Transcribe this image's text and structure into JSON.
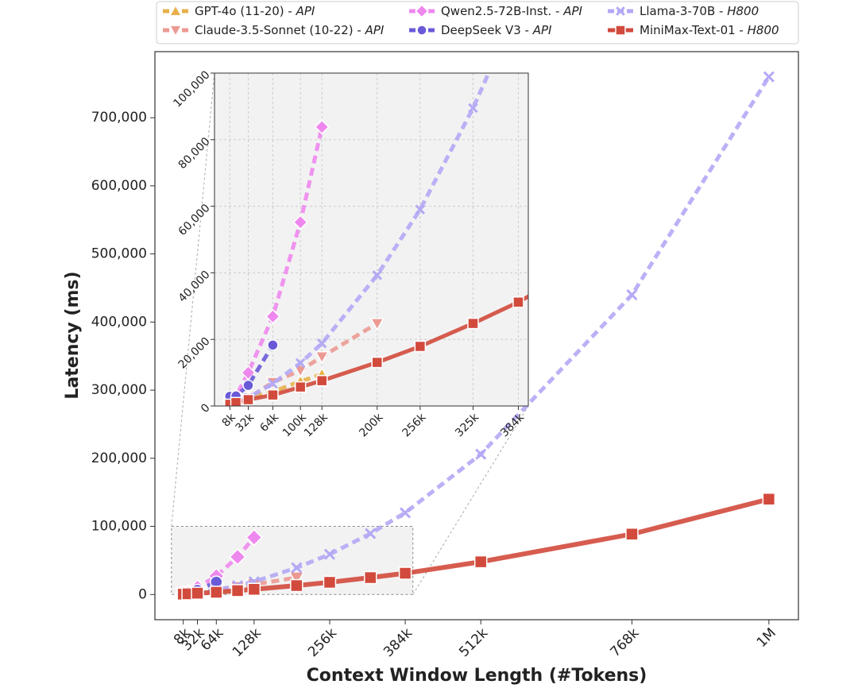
{
  "chart_data": {
    "type": "line",
    "x_label": "Context Window Length (#Tokens)",
    "y_label": "Latency (ms)",
    "xlim": [
      -40,
      1050
    ],
    "ylim": [
      -37000,
      797000
    ],
    "xticks": [
      {
        "value": 8,
        "label": "8k"
      },
      {
        "value": 32,
        "label": "32k"
      },
      {
        "value": 64,
        "label": "64k"
      },
      {
        "value": 128,
        "label": "128k"
      },
      {
        "value": 256,
        "label": "256k"
      },
      {
        "value": 384,
        "label": "384k"
      },
      {
        "value": 512,
        "label": "512k"
      },
      {
        "value": 768,
        "label": "768k"
      },
      {
        "value": 1000,
        "label": "1M"
      }
    ],
    "yticks": [
      0,
      {
        "value": 100000,
        "label": "100,000"
      },
      {
        "value": 200000,
        "label": "200,000"
      },
      {
        "value": 300000,
        "label": "300,000"
      },
      {
        "value": 400000,
        "label": "400,000"
      },
      {
        "value": 500000,
        "label": "500,000"
      },
      {
        "value": 600000,
        "label": "600,000"
      },
      {
        "value": 700000,
        "label": "700,000"
      }
    ],
    "grid": false,
    "inset": {
      "xlim": [
        -12,
        397
      ],
      "ylim": [
        0,
        100000
      ],
      "xticks": [
        {
          "value": 8,
          "label": "8k"
        },
        {
          "value": 32,
          "label": "32k"
        },
        {
          "value": 64,
          "label": "64k"
        },
        {
          "value": 100,
          "label": "100k"
        },
        {
          "value": 128,
          "label": "128k"
        },
        {
          "value": 200,
          "label": "200k"
        },
        {
          "value": 256,
          "label": "256k"
        },
        {
          "value": 325,
          "label": "325k"
        },
        {
          "value": 384,
          "label": "384k"
        }
      ],
      "yticks": [
        0,
        {
          "value": 20000,
          "label": "20,000"
        },
        {
          "value": 40000,
          "label": "40,000"
        },
        {
          "value": 60000,
          "label": "60,000"
        },
        {
          "value": 80000,
          "label": "80,000"
        },
        {
          "value": 100000,
          "label": "100,000"
        }
      ],
      "grid": true
    },
    "legend_position": "top",
    "series": [
      {
        "name": "GPT-4o (11-20) -",
        "platform": "API",
        "color": "#e8b04a",
        "marker": "triangle-up",
        "linestyle": "dashed",
        "x": [
          8,
          16,
          32,
          64,
          100,
          128
        ],
        "values": [
          1000,
          1200,
          2400,
          4300,
          7400,
          9500
        ]
      },
      {
        "name": "Claude-3.5-Sonnet (10-22) -",
        "platform": "API",
        "color": "#eb9a93",
        "marker": "triangle-down",
        "linestyle": "dashed",
        "x": [
          8,
          16,
          32,
          64,
          100,
          128,
          200
        ],
        "values": [
          500,
          1200,
          2400,
          7100,
          10700,
          14800,
          24800
        ]
      },
      {
        "name": "Qwen2.5-72B-Inst. -",
        "platform": "API",
        "color": "#ee88ee",
        "marker": "diamond",
        "linestyle": "dashed",
        "x": [
          8,
          16,
          32,
          64,
          100,
          128
        ],
        "values": [
          1500,
          3000,
          10000,
          26900,
          55200,
          83800
        ]
      },
      {
        "name": "DeepSeek V3 -",
        "platform": "API",
        "color": "#6a5ad8",
        "marker": "circle",
        "linestyle": "dashed",
        "x": [
          8,
          16,
          32,
          64
        ],
        "values": [
          2900,
          3000,
          6200,
          18300
        ]
      },
      {
        "name": "Llama-3-70B -",
        "platform": "H800",
        "color": "#b3a9f5",
        "marker": "x",
        "linestyle": "dashed",
        "x": [
          8,
          16,
          32,
          64,
          100,
          128,
          200,
          256,
          325,
          384,
          512,
          768,
          1000
        ],
        "values": [
          500,
          1200,
          2500,
          6700,
          12900,
          18800,
          39300,
          59000,
          89500,
          120000,
          206000,
          440000,
          760000
        ]
      },
      {
        "name": "MiniMax-Text-01 -",
        "platform": "H800",
        "color": "#d24a3c",
        "marker": "square",
        "linestyle": "solid",
        "x": [
          8,
          16,
          32,
          64,
          100,
          128,
          200,
          256,
          325,
          384,
          512,
          768,
          1000
        ],
        "values": [
          500,
          1000,
          1900,
          3300,
          5700,
          7600,
          13100,
          17900,
          24800,
          31200,
          48000,
          88700,
          140000
        ]
      }
    ]
  }
}
